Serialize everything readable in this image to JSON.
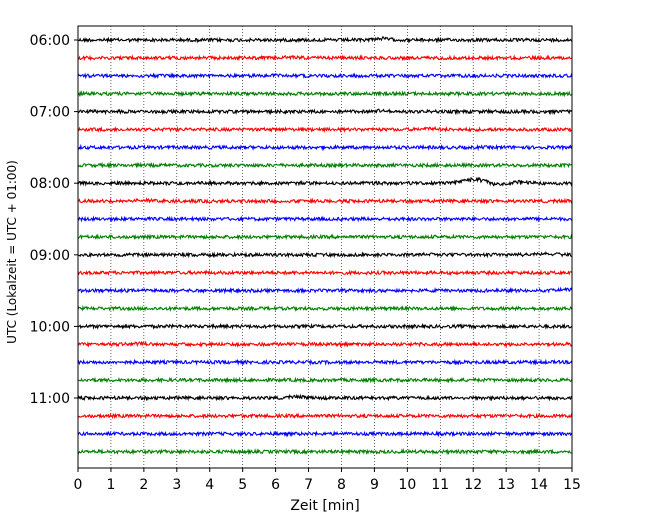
{
  "chart_data": {
    "type": "line",
    "title": "",
    "xlabel": "Zeit  [min]",
    "ylabel": "UTC (Lokalzeit = UTC + 01:00)",
    "xlim": [
      0,
      15
    ],
    "x_ticks": [
      0,
      1,
      2,
      3,
      4,
      5,
      6,
      7,
      8,
      9,
      10,
      11,
      12,
      13,
      14,
      15
    ],
    "y_ticks": [
      "06:00",
      "07:00",
      "08:00",
      "09:00",
      "10:00",
      "11:00"
    ],
    "grid": "vertical dotted",
    "trace_interval": "00:15",
    "trace_colors": [
      "#000000",
      "#ff0000",
      "#0000ff",
      "#008000"
    ],
    "traces": [
      {
        "time": "06:00",
        "color": "#000000",
        "events": [
          {
            "t": 9.2,
            "amp": 0.6
          }
        ]
      },
      {
        "time": "06:15",
        "color": "#ff0000",
        "events": [
          {
            "t": 6.5,
            "amp": 0.3
          }
        ]
      },
      {
        "time": "06:30",
        "color": "#0000ff",
        "events": [
          {
            "t": 6.1,
            "amp": 0.3
          }
        ]
      },
      {
        "time": "06:45",
        "color": "#008000",
        "events": []
      },
      {
        "time": "07:00",
        "color": "#000000",
        "events": [
          {
            "t": 9.1,
            "amp": 0.4
          }
        ]
      },
      {
        "time": "07:15",
        "color": "#ff0000",
        "events": [
          {
            "t": 10.6,
            "amp": 0.4
          }
        ]
      },
      {
        "time": "07:30",
        "color": "#0000ff",
        "events": []
      },
      {
        "time": "07:45",
        "color": "#008000",
        "events": []
      },
      {
        "time": "08:00",
        "color": "#000000",
        "events": [
          {
            "t": 11.7,
            "amp": 0.8
          },
          {
            "t": 12.2,
            "amp": 1.4
          },
          {
            "t": 12.8,
            "amp": -0.8
          },
          {
            "t": 13.4,
            "amp": 0.6
          }
        ]
      },
      {
        "time": "08:15",
        "color": "#ff0000",
        "events": [
          {
            "t": 1.9,
            "amp": 0.4
          }
        ]
      },
      {
        "time": "08:30",
        "color": "#0000ff",
        "events": []
      },
      {
        "time": "08:45",
        "color": "#008000",
        "events": []
      },
      {
        "time": "09:00",
        "color": "#000000",
        "events": [
          {
            "t": 14.2,
            "amp": 0.5
          },
          {
            "t": 10.7,
            "amp": 0.3
          }
        ]
      },
      {
        "time": "09:15",
        "color": "#ff0000",
        "events": []
      },
      {
        "time": "09:30",
        "color": "#0000ff",
        "events": [
          {
            "t": 14.9,
            "amp": 0.4
          }
        ]
      },
      {
        "time": "09:45",
        "color": "#008000",
        "events": []
      },
      {
        "time": "10:00",
        "color": "#000000",
        "events": []
      },
      {
        "time": "10:15",
        "color": "#ff0000",
        "events": [
          {
            "t": 1.9,
            "amp": 0.3
          }
        ]
      },
      {
        "time": "10:30",
        "color": "#0000ff",
        "events": []
      },
      {
        "time": "10:45",
        "color": "#008000",
        "events": []
      },
      {
        "time": "11:00",
        "color": "#000000",
        "events": [
          {
            "t": 6.6,
            "amp": 0.5
          }
        ]
      },
      {
        "time": "11:15",
        "color": "#ff0000",
        "events": []
      },
      {
        "time": "11:30",
        "color": "#0000ff",
        "events": []
      },
      {
        "time": "11:45",
        "color": "#008000",
        "events": []
      }
    ]
  }
}
